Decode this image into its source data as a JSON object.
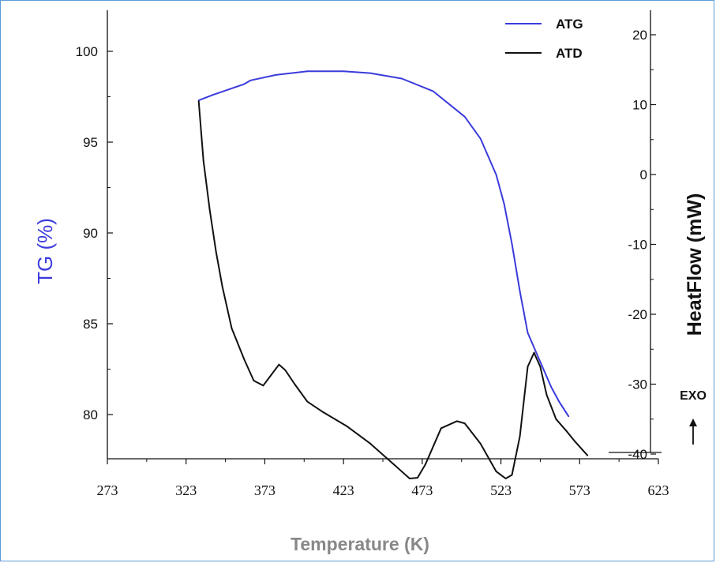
{
  "colors": {
    "atg": "#3b3bdc",
    "atd": "#111111",
    "tg_label": "#3b3bdc",
    "xlabel": "#888888",
    "frame": "#5b9bd5"
  },
  "chart_data": {
    "type": "line",
    "xlabel": "Temperature (K)",
    "ylabel_left": "TG (%)",
    "ylabel_right": "HeatFlow (mW)",
    "annotation": "EXO",
    "annotation_icon": "arrow-up-icon",
    "xlim": [
      273,
      623
    ],
    "ylim_left": [
      77.5,
      102.5
    ],
    "ylim_right": [
      -40.5,
      25
    ],
    "x_ticks": [
      273,
      323,
      373,
      423,
      473,
      523,
      573,
      623
    ],
    "y_ticks_left": [
      80,
      85,
      90,
      95,
      100
    ],
    "y_ticks_right": [
      -40,
      -30,
      -20,
      -10,
      0,
      10,
      20
    ],
    "legend": {
      "position": "top-right",
      "entries": [
        "ATG",
        "ATD"
      ]
    },
    "series": [
      {
        "name": "ATG",
        "axis": "left",
        "x": [
          331,
          340,
          350,
          360,
          364,
          380,
          400,
          423,
          440,
          460,
          480,
          500,
          510,
          520,
          525,
          530,
          535,
          540,
          545,
          550,
          555,
          560,
          566
        ],
        "y": [
          97.3,
          97.6,
          97.9,
          98.2,
          98.4,
          98.7,
          98.9,
          98.9,
          98.8,
          98.5,
          97.8,
          96.4,
          95.2,
          93.2,
          91.6,
          89.4,
          86.8,
          84.5,
          83.5,
          82.5,
          81.5,
          80.7,
          79.9
        ]
      },
      {
        "name": "ATD",
        "axis": "right",
        "x": [
          331,
          334,
          338,
          342,
          346,
          352,
          360,
          366,
          372,
          377,
          382,
          386,
          392,
          400,
          410,
          425,
          440,
          455,
          465,
          470,
          475,
          485,
          495,
          500,
          510,
          520,
          526,
          530,
          535,
          540,
          544,
          548,
          552,
          558,
          565,
          570,
          578
        ],
        "y": [
          10.5,
          2,
          -5,
          -11,
          -16,
          -22,
          -26.5,
          -29.5,
          -30.2,
          -28.7,
          -27.2,
          -28,
          -30,
          -32.5,
          -34,
          -36,
          -38.5,
          -41.5,
          -43.5,
          -43.4,
          -41.5,
          -36.3,
          -35.3,
          -35.6,
          -38.5,
          -42.5,
          -43.5,
          -43,
          -37.5,
          -27.5,
          -25.5,
          -27.5,
          -31.5,
          -35,
          -36.8,
          -38.2,
          -40.2
        ]
      }
    ]
  }
}
